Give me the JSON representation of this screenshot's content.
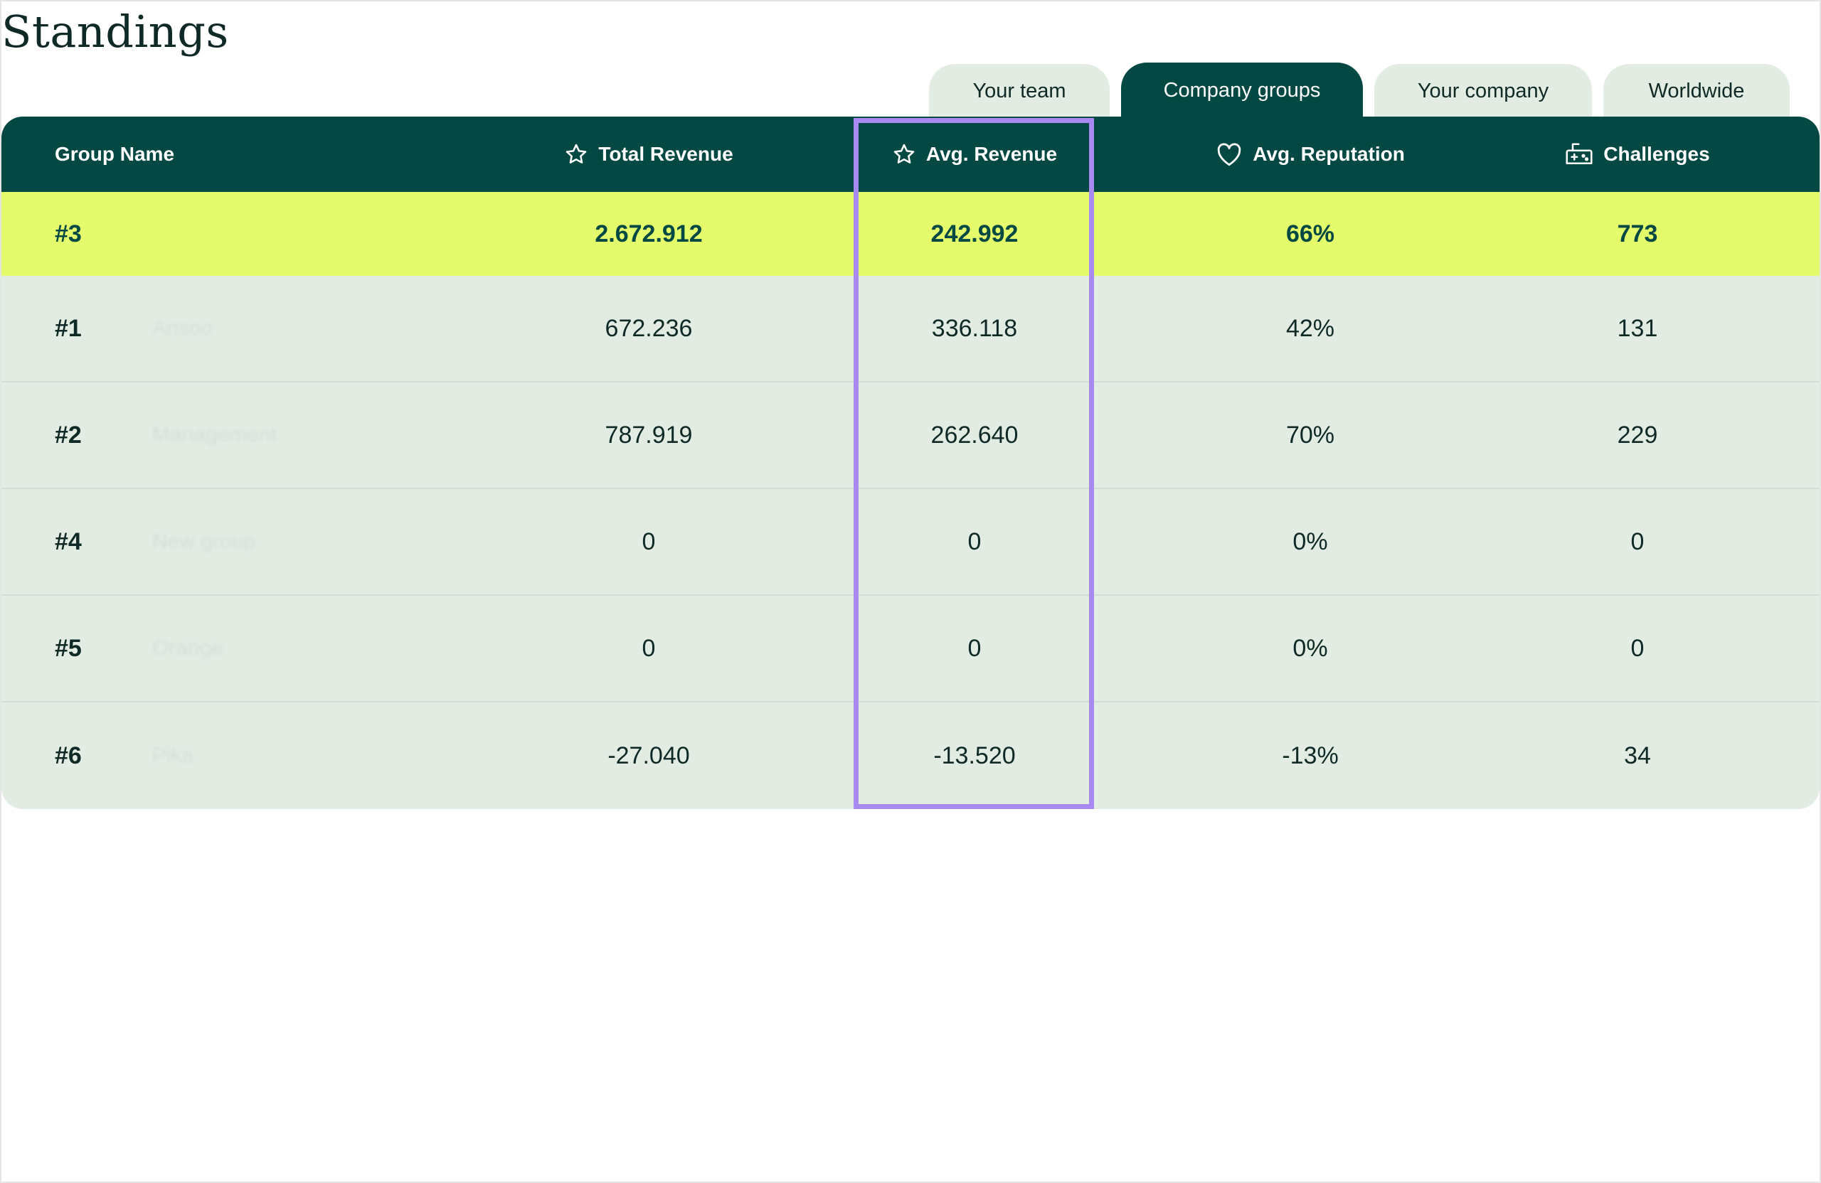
{
  "page_title": "Standings",
  "tabs": [
    {
      "label": "Your team",
      "active": false
    },
    {
      "label": "Company groups",
      "active": true
    },
    {
      "label": "Your company",
      "active": false
    },
    {
      "label": "Worldwide",
      "active": false
    }
  ],
  "table": {
    "headers": {
      "group_name": "Group Name",
      "total_revenue": "Total Revenue",
      "avg_revenue": "Avg. Revenue",
      "avg_reputation": "Avg. Reputation",
      "challenges": "Challenges"
    },
    "header_icons": {
      "total_revenue": "star-icon",
      "avg_revenue": "star-icon",
      "avg_reputation": "heart-icon",
      "challenges": "gamepad-icon"
    },
    "rows": [
      {
        "rank": "#3",
        "group": "",
        "total_revenue": "2.672.912",
        "avg_revenue": "242.992",
        "avg_reputation": "66%",
        "challenges": "773",
        "highlight": true
      },
      {
        "rank": "#1",
        "group": "Ansoo",
        "total_revenue": "672.236",
        "avg_revenue": "336.118",
        "avg_reputation": "42%",
        "challenges": "131"
      },
      {
        "rank": "#2",
        "group": "Management",
        "total_revenue": "787.919",
        "avg_revenue": "262.640",
        "avg_reputation": "70%",
        "challenges": "229"
      },
      {
        "rank": "#4",
        "group": "New group",
        "total_revenue": "0",
        "avg_revenue": "0",
        "avg_reputation": "0%",
        "challenges": "0"
      },
      {
        "rank": "#5",
        "group": "Orange",
        "total_revenue": "0",
        "avg_revenue": "0",
        "avg_reputation": "0%",
        "challenges": "0"
      },
      {
        "rank": "#6",
        "group": "Pika",
        "total_revenue": "-27.040",
        "avg_revenue": "-13.520",
        "avg_reputation": "-13%",
        "challenges": "34"
      }
    ]
  },
  "colors": {
    "header_bg": "#034843",
    "row_bg": "#e3ece3",
    "highlight_row": "#e4fc6b",
    "column_highlight": "#a98af2"
  }
}
